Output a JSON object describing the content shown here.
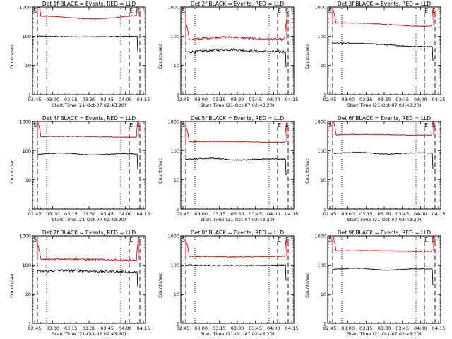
{
  "chart_data": [
    {
      "type": "line",
      "title": "Det 1f BLACK = Events, RED = LLD",
      "xlabel": "Start Time (21-Oct-07 02:43:20)",
      "ylabel": "Counts/sec",
      "yscale": "log",
      "ylim": [
        1,
        1000
      ],
      "x_ticks": [
        "02:45",
        "03:00",
        "03:15",
        "03:30",
        "03:45",
        "04:00",
        "04:15"
      ],
      "y_ticks": [
        "1",
        "10",
        "100",
        "1000"
      ],
      "markers": [
        "S",
        "E",
        "S"
      ],
      "series": [
        {
          "color": "#000000",
          "level": 100,
          "shape": "flat1",
          "noise": 0.03
        },
        {
          "color": "#e00000",
          "level": 500,
          "shape": "bow",
          "noise": 0.03
        }
      ]
    },
    {
      "type": "line",
      "title": "Det 2f BLACK = Events, RED = LLD",
      "xlabel": "Start Time (21-Oct-07 02:43:20)",
      "ylabel": "Counts/sec",
      "yscale": "log",
      "ylim": [
        1,
        1000
      ],
      "x_ticks": [
        "02:45",
        "03:00",
        "03:15",
        "03:30",
        "03:45",
        "04:00",
        "04:15"
      ],
      "y_ticks": [
        "1",
        "10",
        "100",
        "1000"
      ],
      "markers": [
        "S",
        "E",
        "S"
      ],
      "series": [
        {
          "color": "#000000",
          "level": 30,
          "shape": "hump",
          "noise": 0.1
        },
        {
          "color": "#e00000",
          "level": 80,
          "shape": "hump",
          "noise": 0.08
        }
      ]
    },
    {
      "type": "line",
      "title": "Det 3f BLACK = Events, RED = LLD",
      "xlabel": "Start Time (21-Oct-07 02:43:20)",
      "ylabel": "Counts/sec",
      "yscale": "log",
      "ylim": [
        1,
        1000
      ],
      "x_ticks": [
        "02:45",
        "03:00",
        "03:15",
        "03:30",
        "03:45",
        "04:00",
        "04:15"
      ],
      "y_ticks": [
        "1",
        "10",
        "100",
        "1000"
      ],
      "markers": [
        "S",
        "E",
        "S"
      ],
      "series": [
        {
          "color": "#000000",
          "level": 50,
          "shape": "decline",
          "noise": 0.04
        },
        {
          "color": "#e00000",
          "level": 250,
          "shape": "decline",
          "noise": 0.03
        }
      ]
    },
    {
      "type": "line",
      "title": "Det 4f BLACK = Events, RED = LLD",
      "xlabel": "Start Time (21-Oct-07 02:43:20)",
      "ylabel": "Counts/sec",
      "yscale": "log",
      "ylim": [
        1,
        1000
      ],
      "x_ticks": [
        "02:45",
        "03:00",
        "03:15",
        "03:30",
        "03:45",
        "04:00",
        "04:15"
      ],
      "y_ticks": [
        "1",
        "10",
        "100",
        "1000"
      ],
      "markers": [
        "S",
        "E",
        "S"
      ],
      "series": [
        {
          "color": "#000000",
          "level": 75,
          "shape": "bump",
          "noise": 0.03
        },
        {
          "color": "#e00000",
          "level": 300,
          "shape": "flat",
          "noise": 0.03
        }
      ]
    },
    {
      "type": "line",
      "title": "Det 5f BLACK = Events, RED = LLD",
      "xlabel": "Start Time (21-Oct-07 02:43:20)",
      "ylabel": "Counts/sec",
      "yscale": "log",
      "ylim": [
        1,
        1000
      ],
      "x_ticks": [
        "02:45",
        "03:00",
        "03:15",
        "03:30",
        "03:45",
        "04:00",
        "04:15"
      ],
      "y_ticks": [
        "1",
        "10",
        "100",
        "1000"
      ],
      "markers": [
        "S",
        "E",
        "S"
      ],
      "series": [
        {
          "color": "#000000",
          "level": 50,
          "shape": "bump",
          "noise": 0.04
        },
        {
          "color": "#e00000",
          "level": 200,
          "shape": "flat",
          "noise": 0.03
        }
      ]
    },
    {
      "type": "line",
      "title": "Det 6f BLACK = Events, RED = LLD",
      "xlabel": "Start Time (21-Oct-07 02:43:20)",
      "ylabel": "Counts/sec",
      "yscale": "log",
      "ylim": [
        1,
        1000
      ],
      "x_ticks": [
        "02:45",
        "03:00",
        "03:15",
        "03:30",
        "03:45",
        "04:00",
        "04:15"
      ],
      "y_ticks": [
        "1",
        "10",
        "100",
        "1000"
      ],
      "markers": [
        "S",
        "E",
        "S"
      ],
      "series": [
        {
          "color": "#000000",
          "level": 80,
          "shape": "bump",
          "noise": 0.03
        },
        {
          "color": "#e00000",
          "level": 350,
          "shape": "flat",
          "noise": 0.03
        }
      ]
    },
    {
      "type": "line",
      "title": "Det 7f BLACK = Events, RED = LLD",
      "xlabel": "Start Time (21-Oct-07 02:43:20)",
      "ylabel": "Counts/sec",
      "yscale": "log",
      "ylim": [
        1,
        1000
      ],
      "x_ticks": [
        "02:45",
        "03:00",
        "03:15",
        "03:30",
        "03:45",
        "04:00",
        "04:15"
      ],
      "y_ticks": [
        "1",
        "10",
        "100",
        "1000"
      ],
      "markers": [
        "S",
        "E",
        "S"
      ],
      "series": [
        {
          "color": "#000000",
          "level": 60,
          "shape": "wiggle",
          "noise": 0.09
        },
        {
          "color": "#e00000",
          "level": 150,
          "shape": "wiggle",
          "noise": 0.08
        }
      ]
    },
    {
      "type": "line",
      "title": "Det 8f BLACK = Events, RED = LLD",
      "xlabel": "Start Time (21-Oct-07 02:43:20)",
      "ylabel": "Counts/sec",
      "yscale": "log",
      "ylim": [
        1,
        1000
      ],
      "x_ticks": [
        "02:45",
        "03:00",
        "03:15",
        "03:30",
        "03:45",
        "04:00",
        "04:15"
      ],
      "y_ticks": [
        "1",
        "10",
        "100",
        "1000"
      ],
      "markers": [
        "S",
        "E",
        "S"
      ],
      "series": [
        {
          "color": "#000000",
          "level": 100,
          "shape": "flat1",
          "noise": 0.04
        },
        {
          "color": "#e00000",
          "level": 200,
          "shape": "flat1",
          "noise": 0.04
        }
      ]
    },
    {
      "type": "line",
      "title": "Det 9f BLACK = Events, RED = LLD",
      "xlabel": "Start Time (21-Oct-07 02:43:20)",
      "ylabel": "Counts/sec",
      "yscale": "log",
      "ylim": [
        1,
        1000
      ],
      "x_ticks": [
        "02:45",
        "03:00",
        "03:15",
        "03:30",
        "03:45",
        "04:00",
        "04:15"
      ],
      "y_ticks": [
        "1",
        "10",
        "100",
        "1000"
      ],
      "markers": [
        "S",
        "E",
        "S"
      ],
      "series": [
        {
          "color": "#000000",
          "level": 70,
          "shape": "bump",
          "noise": 0.03
        },
        {
          "color": "#e00000",
          "level": 300,
          "shape": "flat",
          "noise": 0.03
        }
      ]
    }
  ]
}
